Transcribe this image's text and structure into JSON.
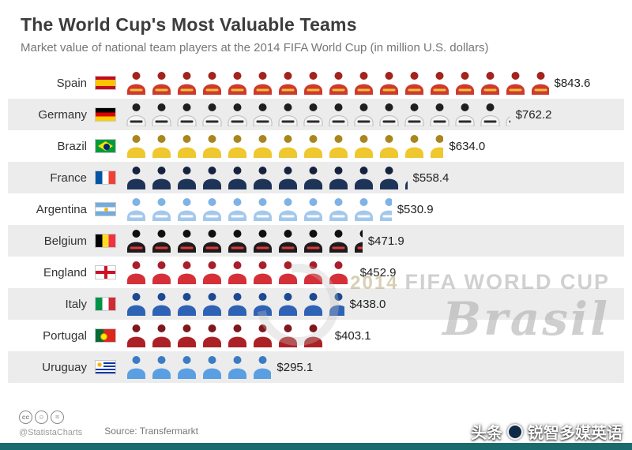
{
  "header": {
    "title": "The World Cup's Most Valuable Teams",
    "subtitle": "Market value of national team players at the 2014 FIFA World Cup (in million U.S. dollars)"
  },
  "chart_data": {
    "type": "pictogram-bar",
    "title": "The World Cup's Most Valuable Teams",
    "unit": "million U.S. dollars",
    "value_prefix": "$",
    "value_per_icon": 50,
    "icon": "person",
    "categories": [
      "Spain",
      "Germany",
      "Brazil",
      "France",
      "Argentina",
      "Belgium",
      "England",
      "Italy",
      "Portugal",
      "Uruguay"
    ],
    "values": [
      843.6,
      762.2,
      634.0,
      558.4,
      530.9,
      471.9,
      452.9,
      438.0,
      403.1,
      295.1
    ],
    "flags": [
      "spain",
      "germany",
      "brazil",
      "france",
      "argentina",
      "belgium",
      "england",
      "italy",
      "portugal",
      "uruguay"
    ],
    "icon_colors": [
      {
        "head": "#A3231D",
        "jersey": "#CE3A30",
        "stripe": "#F2C230"
      },
      {
        "head": "#1F1F1F",
        "jersey": "#F4F4F4",
        "stripe": "#2B2B2B",
        "outline": "#B9B9B9"
      },
      {
        "head": "#A8861D",
        "jersey": "#EFC72E",
        "stripe": null
      },
      {
        "head": "#16233F",
        "jersey": "#1E3358",
        "stripe": null
      },
      {
        "head": "#7FB2E5",
        "jersey": "#A3C8EC",
        "stripe": "#FFFFFF"
      },
      {
        "head": "#101010",
        "jersey": "#1C1C1C",
        "stripe": "#E0393B"
      },
      {
        "head": "#A81E2B",
        "jersey": "#D53038",
        "stripe": null
      },
      {
        "head": "#1C4991",
        "jersey": "#2E62B4",
        "stripe": null
      },
      {
        "head": "#7E181C",
        "jersey": "#AC2125",
        "stripe": null
      },
      {
        "head": "#3A7CC4",
        "jersey": "#5B9FE3",
        "stripe": null
      }
    ]
  },
  "watermark": {
    "year": "2014",
    "line1": "FIFA WORLD CUP",
    "line2": "Brasil"
  },
  "footer": {
    "license": "cc-by-nd",
    "handle": "@StatistaCharts",
    "source": "Source: Transfermarkt"
  },
  "overlay": {
    "prefix": "头条",
    "suffix": "锐智多媒英语"
  }
}
